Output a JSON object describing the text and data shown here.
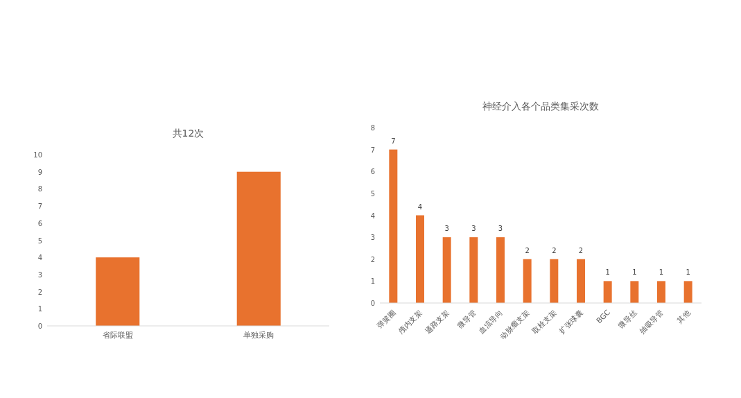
{
  "chart_data": [
    {
      "type": "bar",
      "title": "共12次",
      "categories": [
        "省际联盟",
        "单独采购"
      ],
      "values": [
        4,
        9
      ],
      "color": "#e8722e",
      "ylim": [
        0,
        10
      ],
      "yticks": [
        0,
        1,
        2,
        3,
        4,
        5,
        6,
        7,
        8,
        9,
        10
      ]
    },
    {
      "type": "bar",
      "title": "神经介入各个品类集采次数",
      "categories": [
        "弹簧圈",
        "颅内支架",
        "通路支架",
        "微导管",
        "血流导向",
        "动脉瘤支架",
        "取栓支架",
        "扩张球囊",
        "BGC",
        "微导丝",
        "抽吸导管",
        "其他"
      ],
      "values": [
        7,
        4,
        3,
        3,
        3,
        2,
        2,
        2,
        1,
        1,
        1,
        1
      ],
      "color": "#e8722e",
      "ylim": [
        0,
        8
      ],
      "yticks": [
        0,
        1,
        2,
        3,
        4,
        5,
        6,
        7,
        8
      ],
      "data_labels": true
    }
  ]
}
